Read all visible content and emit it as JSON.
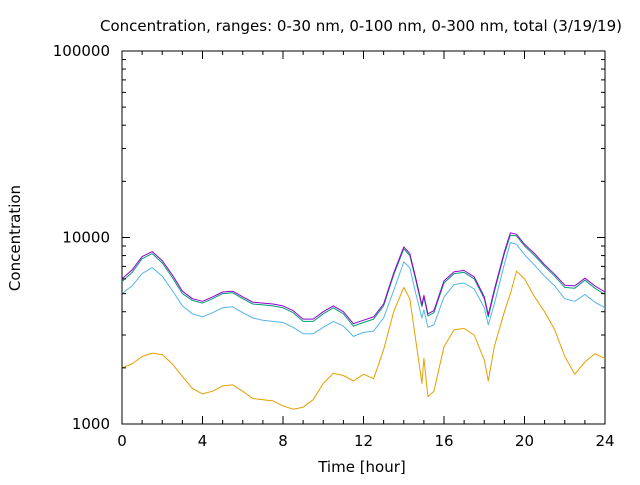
{
  "chart_data": {
    "type": "line",
    "title": "Concentration, ranges: 0-30 nm, 0-100 nm, 0-300 nm, total (3/19/19)",
    "xlabel": "Time [hour]",
    "ylabel": "Concentration",
    "xlim": [
      0,
      24
    ],
    "ylim": [
      1000,
      100000
    ],
    "yscale": "log",
    "grid": false,
    "legend": "none",
    "x_ticks": [
      0,
      4,
      8,
      12,
      16,
      20,
      24
    ],
    "x_tick_labels": [
      "0",
      "4",
      "8",
      "12",
      "16",
      "20",
      "24"
    ],
    "y_ticks": [
      1000,
      10000,
      100000
    ],
    "y_tick_labels": [
      "1000",
      "10000",
      "100000"
    ],
    "series": [
      {
        "color": "#e69f00",
        "x": [
          0,
          0.5,
          1,
          1.5,
          2,
          2.5,
          3,
          3.5,
          4,
          4.5,
          5,
          5.5,
          6,
          6.5,
          7,
          7.5,
          8,
          8.5,
          9,
          9.5,
          10,
          10.5,
          11,
          11.5,
          12,
          12.5,
          13,
          13.5,
          14,
          14.3,
          14.6,
          14.9,
          15.0,
          15.2,
          15.5,
          16,
          16.5,
          17,
          17.5,
          18,
          18.2,
          18.5,
          19,
          19.3,
          19.6,
          20,
          20.5,
          21,
          21.5,
          22,
          22.5,
          23,
          23.5,
          24
        ],
        "y": [
          2000,
          2100,
          2300,
          2400,
          2350,
          2100,
          1800,
          1550,
          1450,
          1500,
          1600,
          1620,
          1500,
          1370,
          1350,
          1330,
          1250,
          1200,
          1230,
          1350,
          1650,
          1870,
          1820,
          1700,
          1850,
          1750,
          2500,
          4000,
          5400,
          4700,
          2800,
          1650,
          2250,
          1400,
          1500,
          2600,
          3200,
          3250,
          3000,
          2200,
          1700,
          2600,
          4000,
          5000,
          6600,
          6000,
          4800,
          4000,
          3200,
          2300,
          1850,
          2150,
          2380,
          2250
        ]
      },
      {
        "color": "#56b4e9",
        "x": [
          0,
          0.5,
          1,
          1.5,
          2,
          2.5,
          3,
          3.5,
          4,
          4.5,
          5,
          5.5,
          6,
          6.5,
          7,
          7.5,
          8,
          8.5,
          9,
          9.5,
          10,
          10.5,
          11,
          11.5,
          12,
          12.5,
          13,
          13.5,
          14,
          14.3,
          14.6,
          14.9,
          15.0,
          15.2,
          15.5,
          16,
          16.5,
          17,
          17.5,
          18,
          18.2,
          18.5,
          19,
          19.3,
          19.6,
          20,
          20.5,
          21,
          21.5,
          22,
          22.5,
          23,
          23.5,
          24
        ],
        "y": [
          5000,
          5500,
          6400,
          6900,
          6200,
          5200,
          4300,
          3900,
          3750,
          3950,
          4200,
          4250,
          3950,
          3700,
          3600,
          3550,
          3500,
          3300,
          3050,
          3050,
          3300,
          3550,
          3350,
          2950,
          3100,
          3150,
          3700,
          5200,
          7400,
          6900,
          5000,
          3700,
          4100,
          3300,
          3400,
          4800,
          5600,
          5700,
          5300,
          4200,
          3400,
          4400,
          7200,
          9400,
          9200,
          8100,
          7100,
          6200,
          5500,
          4700,
          4550,
          4950,
          4500,
          4200
        ]
      },
      {
        "color": "#009e73",
        "x": [
          0,
          0.5,
          1,
          1.5,
          2,
          2.5,
          3,
          3.5,
          4,
          4.5,
          5,
          5.5,
          6,
          6.5,
          7,
          7.5,
          8,
          8.5,
          9,
          9.5,
          10,
          10.5,
          11,
          11.5,
          12,
          12.5,
          13,
          13.5,
          14,
          14.3,
          14.6,
          14.9,
          15.0,
          15.2,
          15.5,
          16,
          16.5,
          17,
          17.5,
          18,
          18.2,
          18.5,
          19,
          19.3,
          19.6,
          20,
          20.5,
          21,
          21.5,
          22,
          22.5,
          23,
          23.5,
          24
        ],
        "y": [
          5800,
          6500,
          7700,
          8200,
          7300,
          6100,
          5000,
          4600,
          4450,
          4700,
          5000,
          5050,
          4700,
          4400,
          4350,
          4300,
          4200,
          3950,
          3550,
          3550,
          3900,
          4200,
          3900,
          3350,
          3500,
          3650,
          4300,
          6300,
          8700,
          8000,
          5900,
          4250,
          4800,
          3800,
          3950,
          5700,
          6400,
          6500,
          6000,
          4700,
          3750,
          5100,
          8200,
          10300,
          10200,
          9000,
          8000,
          7000,
          6200,
          5400,
          5350,
          5900,
          5350,
          4950
        ]
      },
      {
        "color": "#9400d3",
        "x": [
          0,
          0.5,
          1,
          1.5,
          2,
          2.5,
          3,
          3.5,
          4,
          4.5,
          5,
          5.5,
          6,
          6.5,
          7,
          7.5,
          8,
          8.5,
          9,
          9.5,
          10,
          10.5,
          11,
          11.5,
          12,
          12.5,
          13,
          13.5,
          14,
          14.3,
          14.6,
          14.9,
          15.0,
          15.2,
          15.5,
          16,
          16.5,
          17,
          17.5,
          18,
          18.2,
          18.5,
          19,
          19.3,
          19.6,
          20,
          20.5,
          21,
          21.5,
          22,
          22.5,
          23,
          23.5,
          24
        ],
        "y": [
          6000,
          6700,
          7900,
          8400,
          7500,
          6300,
          5150,
          4700,
          4550,
          4800,
          5100,
          5150,
          4800,
          4500,
          4450,
          4400,
          4300,
          4050,
          3650,
          3650,
          4000,
          4300,
          4000,
          3450,
          3600,
          3750,
          4400,
          6450,
          8900,
          8200,
          6050,
          4350,
          4900,
          3900,
          4050,
          5850,
          6550,
          6650,
          6150,
          4800,
          3850,
          5250,
          8400,
          10600,
          10400,
          9200,
          8200,
          7150,
          6350,
          5550,
          5500,
          6050,
          5500,
          5100
        ]
      }
    ]
  }
}
